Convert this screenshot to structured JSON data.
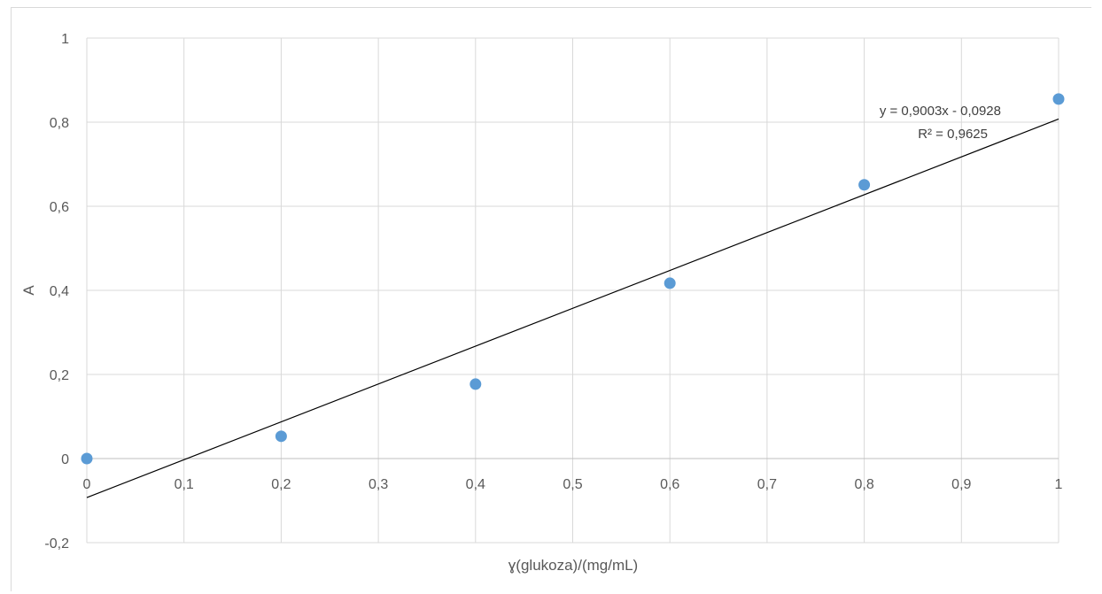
{
  "chart_data": {
    "type": "scatter",
    "title": "",
    "xlabel": "ɣ(glukoza)/(mg/mL)",
    "ylabel": "A",
    "xlim": [
      0,
      1
    ],
    "ylim": [
      -0.2,
      1
    ],
    "x_ticks": [
      0,
      0.1,
      0.2,
      0.3,
      0.4,
      0.5,
      0.6,
      0.7,
      0.8,
      0.9,
      1
    ],
    "x_tick_labels": [
      "0",
      "0,1",
      "0,2",
      "0,3",
      "0,4",
      "0,5",
      "0,6",
      "0,7",
      "0,8",
      "0,9",
      "1"
    ],
    "y_ticks": [
      -0.2,
      0,
      0.2,
      0.4,
      0.6,
      0.8,
      1
    ],
    "y_tick_labels": [
      "-0,2",
      "0",
      "0,2",
      "0,4",
      "0,6",
      "0,8",
      "1"
    ],
    "grid": true,
    "legend": "none",
    "series": [
      {
        "x": [
          0,
          0.2,
          0.4,
          0.6,
          0.8,
          1.0
        ],
        "y": [
          0.0,
          0.053,
          0.177,
          0.417,
          0.651,
          0.855
        ],
        "color": "#5b9bd5"
      }
    ],
    "trendline": {
      "slope": 0.9003,
      "intercept": -0.0928,
      "color": "#000000",
      "equation_label": "y = 0,9003x - 0,0928",
      "r2_label": "R² = 0,9625"
    },
    "colors": {
      "grid": "#d9d9d9",
      "marker": "#5b9bd5",
      "text": "#595959"
    }
  }
}
